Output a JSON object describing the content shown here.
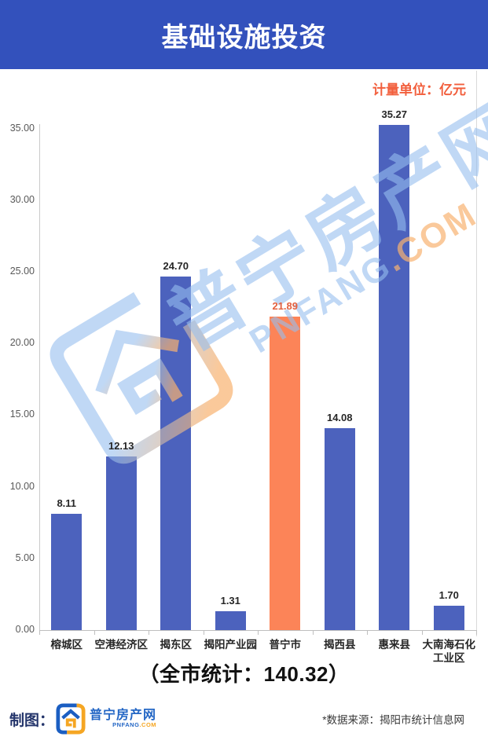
{
  "header": {
    "title": "基础设施投资",
    "bg_color": "#3351BC"
  },
  "unit_label": {
    "text": "计量单位：亿元",
    "color": "#F25F3D"
  },
  "chart_data": {
    "type": "bar",
    "title": "基础设施投资",
    "categories": [
      "榕城区",
      "空港经济区",
      "揭东区",
      "揭阳产业园",
      "普宁市",
      "揭西县",
      "惠来县",
      "大南海石化工业区"
    ],
    "values": [
      8.11,
      12.13,
      24.7,
      1.31,
      21.89,
      14.08,
      35.27,
      1.7
    ],
    "highlight_index": 4,
    "unit": "亿元",
    "yticks": [
      0,
      5,
      10,
      15,
      20,
      25,
      30,
      35
    ],
    "ylim": [
      0,
      35
    ],
    "grid": false,
    "legend": "none",
    "bar_color": "#4C62BD",
    "highlight_color": "#FC8458",
    "value_label_color": "#262626",
    "highlight_label_color": "#E4603E"
  },
  "summary": {
    "text": "（全市统计：140.32）",
    "total": "140.32"
  },
  "watermark": {
    "text": "普宁房产网",
    "subtext_main": "PNFANG",
    "subtext_tld": ".COM",
    "blue": "rgba(150,190,238,0.60)",
    "orange": "rgba(248,178,112,0.70)"
  },
  "footer": {
    "credit_label": "制图：",
    "brand_name": "普宁房产网",
    "brand_domain_main": "PNFANG",
    "brand_domain_tld": ".COM",
    "source": "*数据来源：揭阳市统计信息网",
    "logo_blue": "#1B5EC2",
    "logo_orange": "#F5A623"
  }
}
